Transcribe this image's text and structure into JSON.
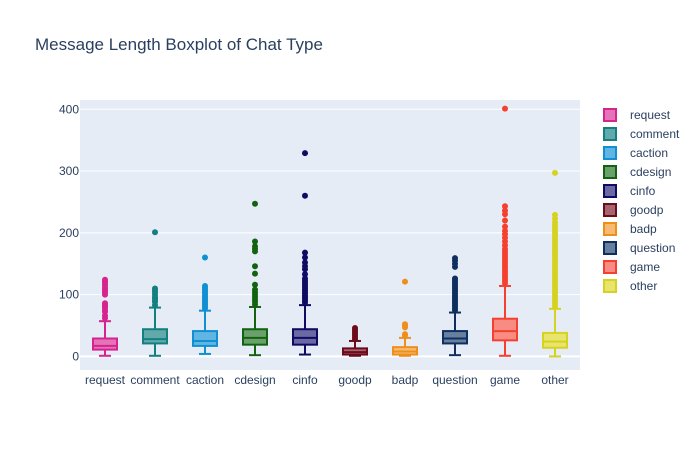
{
  "chart_data": {
    "type": "box",
    "title": "Message Length Boxplot of Chat Type",
    "xlabel": "",
    "ylabel": "",
    "ylim": [
      -22,
      415
    ],
    "yticks": [
      0,
      100,
      200,
      300,
      400
    ],
    "grid": true,
    "legend_position": "right",
    "categories": [
      "request",
      "comment",
      "caction",
      "cdesign",
      "cinfo",
      "goodp",
      "badp",
      "question",
      "game",
      "other"
    ],
    "series": [
      {
        "name": "request",
        "color": "#d6248f",
        "fill": "#e573b7",
        "lower_fence": 1,
        "q1": 11,
        "median": 17,
        "q3": 29,
        "upper_fence": 57,
        "outliers": [
          62,
          66,
          72,
          74,
          78,
          80,
          82,
          84,
          86,
          100,
          103,
          105,
          108,
          111,
          115,
          117,
          120,
          122,
          124
        ]
      },
      {
        "name": "comment",
        "color": "#137f80",
        "fill": "#61a9aa",
        "lower_fence": 1,
        "q1": 21,
        "median": 28,
        "q3": 44,
        "upper_fence": 79,
        "outliers": [
          83,
          88,
          91,
          94,
          96,
          100,
          104,
          107,
          110,
          201
        ]
      },
      {
        "name": "caction",
        "color": "#1090d2",
        "fill": "#60b5e3",
        "lower_fence": 4,
        "q1": 17,
        "median": 25,
        "q3": 41,
        "upper_fence": 74,
        "outliers": [
          78,
          81,
          84,
          87,
          90,
          93,
          96,
          99,
          102,
          105,
          108,
          111,
          114,
          160
        ]
      },
      {
        "name": "cdesign",
        "color": "#136212",
        "fill": "#6aa069",
        "lower_fence": 2,
        "q1": 19,
        "median": 30,
        "q3": 44,
        "upper_fence": 80,
        "outliers": [
          84,
          88,
          92,
          96,
          100,
          104,
          108,
          116,
          134,
          146,
          170,
          174,
          178,
          186,
          247
        ]
      },
      {
        "name": "cinfo",
        "color": "#0e0b63",
        "fill": "#6b69a3",
        "lower_fence": 3,
        "q1": 19,
        "median": 30,
        "q3": 44,
        "upper_fence": 83,
        "outliers": [
          87,
          90,
          93,
          96,
          99,
          102,
          105,
          108,
          111,
          114,
          117,
          120,
          123,
          126,
          133,
          141,
          146,
          152,
          160,
          168,
          260,
          329
        ]
      },
      {
        "name": "goodp",
        "color": "#6d0a1b",
        "fill": "#a56470",
        "lower_fence": 1,
        "q1": 3,
        "median": 7,
        "q3": 13,
        "upper_fence": 25,
        "outliers": [
          28,
          31,
          34,
          37,
          40,
          43,
          46
        ]
      },
      {
        "name": "badp",
        "color": "#ee8f1a",
        "fill": "#f5bb75",
        "lower_fence": 1,
        "q1": 3,
        "median": 8,
        "q3": 15,
        "upper_fence": 30,
        "outliers": [
          34,
          36,
          47,
          50,
          52,
          121
        ]
      },
      {
        "name": "question",
        "color": "#0f2f5e",
        "fill": "#67809f",
        "lower_fence": 2,
        "q1": 21,
        "median": 29,
        "q3": 41,
        "upper_fence": 71,
        "outliers": [
          75,
          78,
          81,
          84,
          87,
          90,
          93,
          96,
          99,
          102,
          105,
          108,
          111,
          114,
          117,
          120,
          123,
          126,
          145,
          150,
          155,
          159
        ]
      },
      {
        "name": "game",
        "color": "#f5402f",
        "fill": "#f98c82",
        "lower_fence": 1,
        "q1": 26,
        "median": 41,
        "q3": 61,
        "upper_fence": 114,
        "outliers": [
          118,
          122,
          126,
          130,
          134,
          138,
          142,
          146,
          150,
          154,
          158,
          162,
          166,
          170,
          174,
          180,
          186,
          192,
          198,
          203,
          210,
          220,
          230,
          236,
          243,
          401
        ]
      },
      {
        "name": "other",
        "color": "#d6d320",
        "fill": "#e7e56e",
        "lower_fence": 0,
        "q1": 14,
        "median": 24,
        "q3": 38,
        "upper_fence": 77,
        "outliers": [
          80,
          84,
          88,
          92,
          96,
          100,
          104,
          108,
          112,
          116,
          120,
          124,
          128,
          132,
          136,
          140,
          144,
          148,
          152,
          156,
          160,
          164,
          168,
          172,
          176,
          180,
          184,
          188,
          192,
          196,
          200,
          204,
          208,
          212,
          217,
          223,
          229,
          297
        ]
      }
    ]
  }
}
